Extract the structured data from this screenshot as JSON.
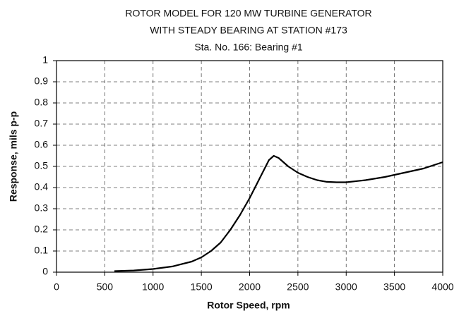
{
  "chart_data": {
    "type": "line",
    "title": [
      "ROTOR MODEL FOR 120 MW TURBINE GENERATOR",
      "WITH STEADY BEARING AT STATION #173"
    ],
    "subtitle": "Sta. No. 166: Bearing #1",
    "x_label": "Rotor Speed, rpm",
    "y_label": "Response, mils p-p",
    "x": [
      600,
      800,
      1000,
      1200,
      1400,
      1500,
      1600,
      1700,
      1800,
      1900,
      2000,
      2100,
      2200,
      2250,
      2300,
      2400,
      2500,
      2600,
      2700,
      2800,
      2900,
      3000,
      3200,
      3400,
      3600,
      3800,
      4000
    ],
    "series": [
      {
        "color": "#000000",
        "values": [
          0.005,
          0.008,
          0.015,
          0.027,
          0.05,
          0.07,
          0.1,
          0.14,
          0.2,
          0.27,
          0.35,
          0.44,
          0.53,
          0.55,
          0.54,
          0.5,
          0.47,
          0.45,
          0.435,
          0.427,
          0.425,
          0.425,
          0.435,
          0.45,
          0.47,
          0.49,
          0.52
        ]
      }
    ],
    "xlim": [
      0,
      4000
    ],
    "xticks": [
      0,
      500,
      1000,
      1500,
      2000,
      2500,
      3000,
      3500,
      4000
    ],
    "ylim": [
      0,
      1
    ],
    "yticks": [
      0,
      0.1,
      0.2,
      0.3,
      0.4,
      0.5,
      0.6,
      0.7,
      0.8,
      0.9,
      1
    ],
    "grid": true
  }
}
